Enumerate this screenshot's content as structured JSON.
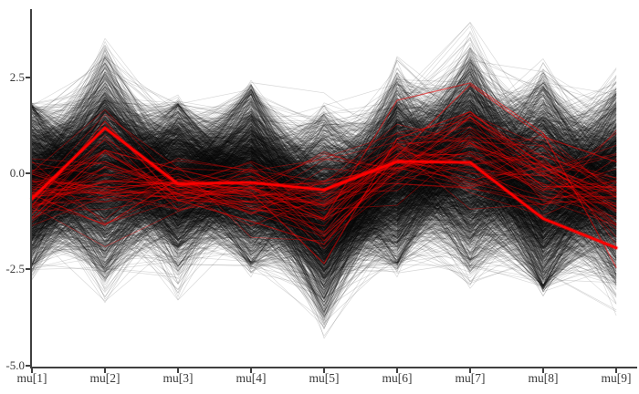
{
  "chart_data": {
    "type": "parallel_coordinates",
    "title": "",
    "description": "MCMC parallel coordinates: posterior draws (black), divergent transitions (red), one highlighted divergent path (thick red)",
    "x": {
      "parameters": [
        "mu[1]",
        "mu[2]",
        "mu[3]",
        "mu[4]",
        "mu[5]",
        "mu[6]",
        "mu[7]",
        "mu[8]",
        "mu[9]"
      ]
    },
    "y_axis": {
      "ticks": [
        {
          "value": 2.5,
          "label": "2.5"
        },
        {
          "value": 0.0,
          "label": "0.0"
        },
        {
          "value": -2.5,
          "label": "-2.5"
        },
        {
          "value": -5.0,
          "label": "-5.0"
        }
      ],
      "range_top": 4.3,
      "range_bottom": -5.05
    },
    "colors": {
      "draws": "#000000",
      "divergence": "#ff0000",
      "axis": "#404040",
      "tick_label": "#3a3a3a",
      "background": "#ffffff"
    },
    "draw_lines": {
      "count": 2600,
      "opacity": 0.16,
      "line_width": 0.65,
      "seed": 42,
      "envelope": [
        {
          "param": "mu[1]",
          "dense_high": 1.7,
          "dense_low": -2.35,
          "max": 1.95,
          "min": -2.85
        },
        {
          "param": "mu[2]",
          "dense_high": 2.6,
          "dense_low": -2.45,
          "max": 3.85,
          "min": -3.45
        },
        {
          "param": "mu[3]",
          "dense_high": 1.75,
          "dense_low": -2.25,
          "max": 2.05,
          "min": -3.3
        },
        {
          "param": "mu[4]",
          "dense_high": 2.05,
          "dense_low": -2.3,
          "max": 2.5,
          "min": -2.7
        },
        {
          "param": "mu[5]",
          "dense_high": 1.25,
          "dense_low": -3.5,
          "max": 2.15,
          "min": -4.6
        },
        {
          "param": "mu[6]",
          "dense_high": 2.3,
          "dense_low": -2.3,
          "max": 3.2,
          "min": -2.7
        },
        {
          "param": "mu[7]",
          "dense_high": 2.9,
          "dense_low": -2.2,
          "max": 3.95,
          "min": -3.2
        },
        {
          "param": "mu[8]",
          "dense_high": 2.15,
          "dense_low": -2.9,
          "max": 3.05,
          "min": -3.2
        },
        {
          "param": "mu[9]",
          "dense_high": 1.95,
          "dense_low": -2.6,
          "max": 2.8,
          "min": -3.75
        }
      ]
    },
    "divergent_lines": {
      "count": 46,
      "opacity": 0.38,
      "line_width": 0.9,
      "seed": 90210,
      "envelope": [
        {
          "param": "mu[1]",
          "dense_high": 0.35,
          "dense_low": -1.45,
          "max": 1.3,
          "min": -2.6
        },
        {
          "param": "mu[2]",
          "dense_high": 1.5,
          "dense_low": -1.5,
          "max": 2.2,
          "min": -2.8
        },
        {
          "param": "mu[3]",
          "dense_high": 0.4,
          "dense_low": -1.1,
          "max": 1.6,
          "min": -2.4
        },
        {
          "param": "mu[4]",
          "dense_high": 0.4,
          "dense_low": -1.4,
          "max": 1.7,
          "min": -2.5
        },
        {
          "param": "mu[5]",
          "dense_high": 0.3,
          "dense_low": -2.1,
          "max": 1.5,
          "min": -2.9
        },
        {
          "param": "mu[6]",
          "dense_high": 1.3,
          "dense_low": -0.8,
          "max": 2.4,
          "min": -1.8
        },
        {
          "param": "mu[7]",
          "dense_high": 1.8,
          "dense_low": -0.7,
          "max": 2.5,
          "min": -2.0
        },
        {
          "param": "mu[8]",
          "dense_high": 1.2,
          "dense_low": -1.3,
          "max": 2.2,
          "min": -2.6
        },
        {
          "param": "mu[9]",
          "dense_high": 0.6,
          "dense_low": -1.7,
          "max": 1.6,
          "min": -2.8
        }
      ]
    },
    "secondary_divergent_paths": [
      {
        "opacity": 0.5,
        "line_width": 1.3,
        "values": [
          -0.85,
          1.35,
          -0.7,
          -1.25,
          -1.85,
          0.45,
          2.3,
          0.95,
          0.3
        ]
      },
      {
        "opacity": 0.5,
        "line_width": 1.3,
        "values": [
          -0.55,
          -1.35,
          -0.15,
          -0.5,
          -2.35,
          0.9,
          1.6,
          0.2,
          -0.95
        ]
      },
      {
        "opacity": 0.5,
        "line_width": 1.3,
        "values": [
          -1.15,
          0.6,
          0.1,
          -0.35,
          -1.2,
          1.9,
          2.35,
          1.05,
          -2.45
        ]
      }
    ],
    "highlight_path": {
      "line_width": 2.6,
      "values": [
        -0.66,
        1.18,
        -0.28,
        -0.24,
        -0.43,
        0.31,
        0.28,
        -1.18,
        -1.94
      ]
    }
  }
}
